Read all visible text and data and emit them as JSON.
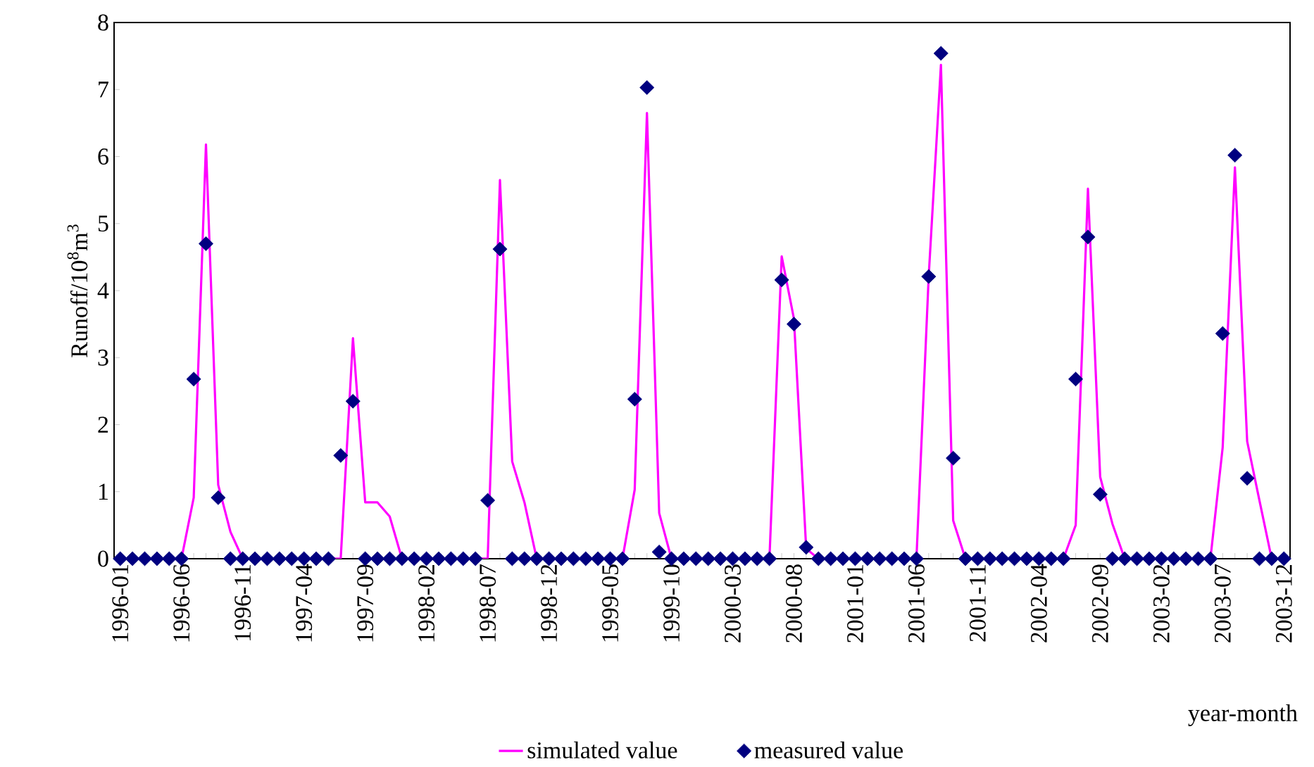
{
  "chart_data": {
    "type": "line",
    "xlabel": "year-month",
    "ylabel": "Runoff/10$^{8}$m$^{3}$",
    "ylim": [
      0,
      8
    ],
    "yticks": [
      0,
      1,
      2,
      3,
      4,
      5,
      6,
      7,
      8
    ],
    "legend": "bottom",
    "categories": [
      "1996-01",
      null,
      null,
      null,
      null,
      "1996-06",
      null,
      null,
      null,
      null,
      "1996-11",
      null,
      null,
      null,
      null,
      "1997-04",
      null,
      null,
      null,
      null,
      "1997-09",
      null,
      null,
      null,
      null,
      "1998-02",
      null,
      null,
      null,
      null,
      "1998-07",
      null,
      null,
      null,
      null,
      "1998-12",
      null,
      null,
      null,
      null,
      "1999-05",
      null,
      null,
      null,
      null,
      "1999-10",
      null,
      null,
      null,
      null,
      "2000-03",
      null,
      null,
      null,
      null,
      "2000-08",
      null,
      null,
      null,
      null,
      "2001-01",
      null,
      null,
      null,
      null,
      "2001-06",
      null,
      null,
      null,
      null,
      "2001-11",
      null,
      null,
      null,
      null,
      "2002-04",
      null,
      null,
      null,
      null,
      "2002-09",
      null,
      null,
      null,
      null,
      "2003-02",
      null,
      null,
      null,
      null,
      "2003-07",
      null,
      null,
      null,
      null,
      "2003-12"
    ],
    "series": [
      {
        "name": "simulated value",
        "type": "line",
        "marker": "none",
        "color": "#ff00ff",
        "values": [
          null,
          null,
          null,
          null,
          null,
          0,
          0.91,
          6.18,
          1.1,
          0.4,
          0,
          null,
          null,
          null,
          null,
          null,
          null,
          0,
          0,
          3.29,
          0.84,
          0.84,
          0.63,
          0,
          null,
          null,
          null,
          null,
          null,
          0,
          0,
          5.65,
          1.45,
          0.84,
          0,
          null,
          null,
          null,
          null,
          null,
          null,
          0,
          1.03,
          6.65,
          0.68,
          0,
          null,
          null,
          null,
          null,
          null,
          null,
          null,
          0,
          4.51,
          3.58,
          0.15,
          0,
          null,
          null,
          null,
          null,
          null,
          null,
          null,
          0,
          4.21,
          7.37,
          0.57,
          0,
          null,
          null,
          null,
          null,
          null,
          null,
          null,
          0,
          0.5,
          5.52,
          1.22,
          0.52,
          0,
          null,
          null,
          null,
          null,
          null,
          null,
          0,
          1.66,
          5.84,
          1.75,
          0.87,
          0,
          null
        ]
      },
      {
        "name": "measured value",
        "type": "scatter",
        "marker": "diamond",
        "color": "#000080",
        "values": [
          0,
          0,
          0,
          0,
          0,
          0,
          2.68,
          4.7,
          0.91,
          0,
          0,
          0,
          0,
          0,
          0,
          0,
          0,
          0,
          1.54,
          2.35,
          0,
          0,
          0,
          0,
          0,
          0,
          0,
          0,
          0,
          0,
          0.87,
          4.62,
          0,
          0,
          0,
          0,
          0,
          0,
          0,
          0,
          0,
          0,
          2.38,
          7.03,
          0.1,
          0,
          0,
          0,
          0,
          0,
          0,
          0,
          0,
          0,
          4.16,
          3.5,
          0.17,
          0,
          0,
          0,
          0,
          0,
          0,
          0,
          0,
          0,
          4.21,
          7.54,
          1.5,
          0,
          0,
          0,
          0,
          0,
          0,
          0,
          0,
          0,
          2.68,
          4.8,
          0.96,
          0,
          0,
          0,
          0,
          0,
          0,
          0,
          0,
          0,
          3.36,
          6.02,
          1.2,
          0,
          0,
          0
        ]
      }
    ]
  }
}
